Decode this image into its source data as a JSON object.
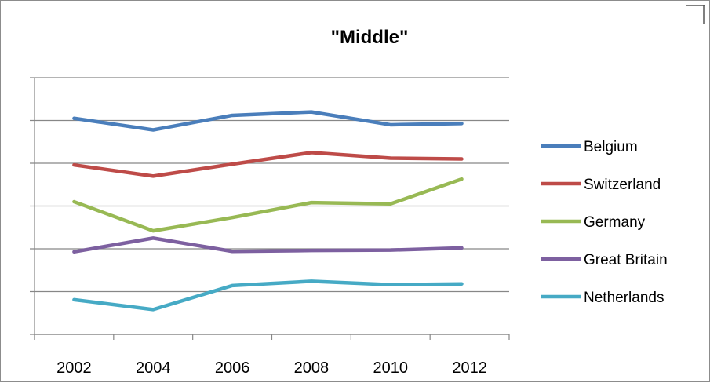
{
  "chart_data": {
    "type": "line",
    "title": "\"Middle\"",
    "xlabel": "",
    "ylabel": "",
    "categories": [
      "2002",
      "2004",
      "2006",
      "2008",
      "2010",
      "2012"
    ],
    "x": [
      2002,
      2004,
      2006,
      2008,
      2010,
      2011.8
    ],
    "y_tick_labels_visible": false,
    "ylim": [
      0,
      6
    ],
    "y_gridline_count": 7,
    "grid": true,
    "legend_position": "right",
    "series": [
      {
        "name": "Belgium",
        "color": "#4a7ebb",
        "values": [
          5.05,
          4.78,
          5.12,
          5.2,
          4.9,
          4.93
        ]
      },
      {
        "name": "Switzerland",
        "color": "#be4b48",
        "values": [
          3.96,
          3.7,
          3.98,
          4.25,
          4.12,
          4.1
        ]
      },
      {
        "name": "Germany",
        "color": "#98b954",
        "values": [
          3.1,
          2.42,
          2.73,
          3.08,
          3.05,
          3.63
        ]
      },
      {
        "name": "Great Britain",
        "color": "#7d60a0",
        "values": [
          1.93,
          2.25,
          1.94,
          1.96,
          1.97,
          2.02
        ]
      },
      {
        "name": "Netherlands",
        "color": "#46aac5",
        "values": [
          0.81,
          0.58,
          1.14,
          1.24,
          1.16,
          1.18
        ]
      }
    ]
  }
}
